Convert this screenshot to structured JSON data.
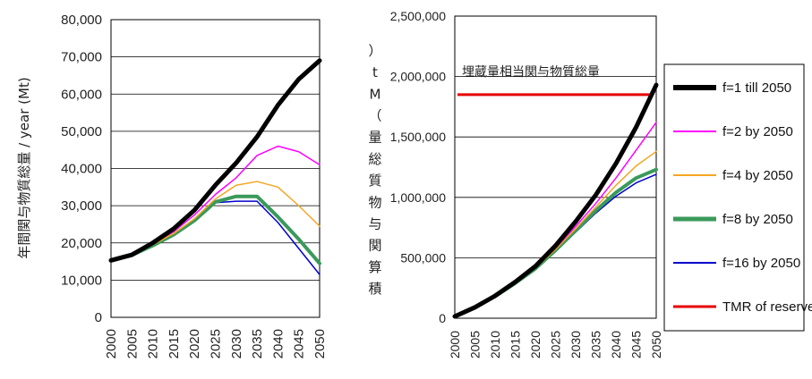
{
  "colors": {
    "f1": "#000000",
    "f2": "#ff00ff",
    "f4": "#f5a623",
    "f8": "#3a9a5b",
    "f16": "#0000cc",
    "tmr": "#e60000",
    "grid": "#000000"
  },
  "chart_data": [
    {
      "type": "line",
      "ylabel": "年間関与物質総量 / year (Mt)",
      "ylim": [
        0,
        80000
      ],
      "yticks": [
        "0",
        "10,000",
        "20,000",
        "30,000",
        "40,000",
        "50,000",
        "60,000",
        "70,000",
        "80,000"
      ],
      "grid": true,
      "x": [
        "2000",
        "2005",
        "2010",
        "2015",
        "2020",
        "2025",
        "2030",
        "2035",
        "2040",
        "2045",
        "2050"
      ],
      "series": [
        {
          "name": "f=1 till 2050",
          "color_key": "f1",
          "values": [
            15300,
            16800,
            20000,
            23800,
            28800,
            35500,
            41500,
            48500,
            57000,
            64000,
            69000
          ]
        },
        {
          "name": "f=2 by 2050",
          "color_key": "f2",
          "values": [
            15300,
            16800,
            19800,
            23000,
            27500,
            33000,
            37500,
            43500,
            46000,
            44500,
            41000
          ]
        },
        {
          "name": "f=4 by 2050",
          "color_key": "f4",
          "values": [
            15300,
            16800,
            19500,
            22500,
            26500,
            31800,
            35500,
            36500,
            35000,
            30000,
            24500
          ]
        },
        {
          "name": "f=8 by 2050",
          "color_key": "f8",
          "values": [
            15300,
            16700,
            19300,
            22200,
            26000,
            31000,
            32500,
            32500,
            27000,
            21000,
            14500
          ]
        },
        {
          "name": "f=16 by 2050",
          "color_key": "f16",
          "values": [
            15300,
            16700,
            19000,
            22000,
            25800,
            30800,
            31200,
            31200,
            25500,
            18500,
            11500
          ]
        }
      ]
    },
    {
      "type": "line",
      "ylabel": "積算関与物質総量（Mt）",
      "ylim": [
        0,
        2500000
      ],
      "yticks": [
        "0",
        "500,000",
        "1,000,000",
        "1,500,000",
        "2,000,000",
        "2,500,000"
      ],
      "grid": true,
      "x": [
        "2000",
        "2005",
        "2010",
        "2015",
        "2020",
        "2025",
        "2030",
        "2035",
        "2040",
        "2045",
        "2050"
      ],
      "annotation": "埋蔵量相当関与物質総量",
      "series": [
        {
          "name": "f=1 till 2050",
          "color_key": "f1",
          "values": [
            15000,
            90000,
            185000,
            300000,
            430000,
            600000,
            800000,
            1020000,
            1280000,
            1580000,
            1930000
          ]
        },
        {
          "name": "f=2 by 2050",
          "color_key": "f2",
          "values": [
            15000,
            90000,
            183000,
            295000,
            420000,
            580000,
            760000,
            950000,
            1160000,
            1390000,
            1620000
          ]
        },
        {
          "name": "f=4 by 2050",
          "color_key": "f4",
          "values": [
            15000,
            90000,
            182000,
            292000,
            415000,
            570000,
            740000,
            920000,
            1100000,
            1260000,
            1380000
          ]
        },
        {
          "name": "f=8 by 2050",
          "color_key": "f8",
          "values": [
            15000,
            89000,
            181000,
            290000,
            410000,
            562000,
            725000,
            890000,
            1040000,
            1160000,
            1230000
          ]
        },
        {
          "name": "f=16 by 2050",
          "color_key": "f16",
          "values": [
            15000,
            89000,
            180000,
            288000,
            406000,
            555000,
            712000,
            870000,
            1010000,
            1120000,
            1190000
          ]
        }
      ],
      "reference_lines": [
        {
          "name": "TMR of reserves",
          "color_key": "tmr",
          "value": 1850000
        }
      ]
    }
  ],
  "legend": [
    {
      "label": "f=1 till 2050",
      "color_key": "f1",
      "width": 6
    },
    {
      "label": "f=2 by 2050",
      "color_key": "f2",
      "width": 2
    },
    {
      "label": "f=4 by 2050",
      "color_key": "f4",
      "width": 2
    },
    {
      "label": "f=8 by 2050",
      "color_key": "f8",
      "width": 5
    },
    {
      "label": "f=16 by 2050",
      "color_key": "f16",
      "width": 2
    },
    {
      "label": "TMR of reserves",
      "color_key": "tmr",
      "width": 3
    }
  ]
}
